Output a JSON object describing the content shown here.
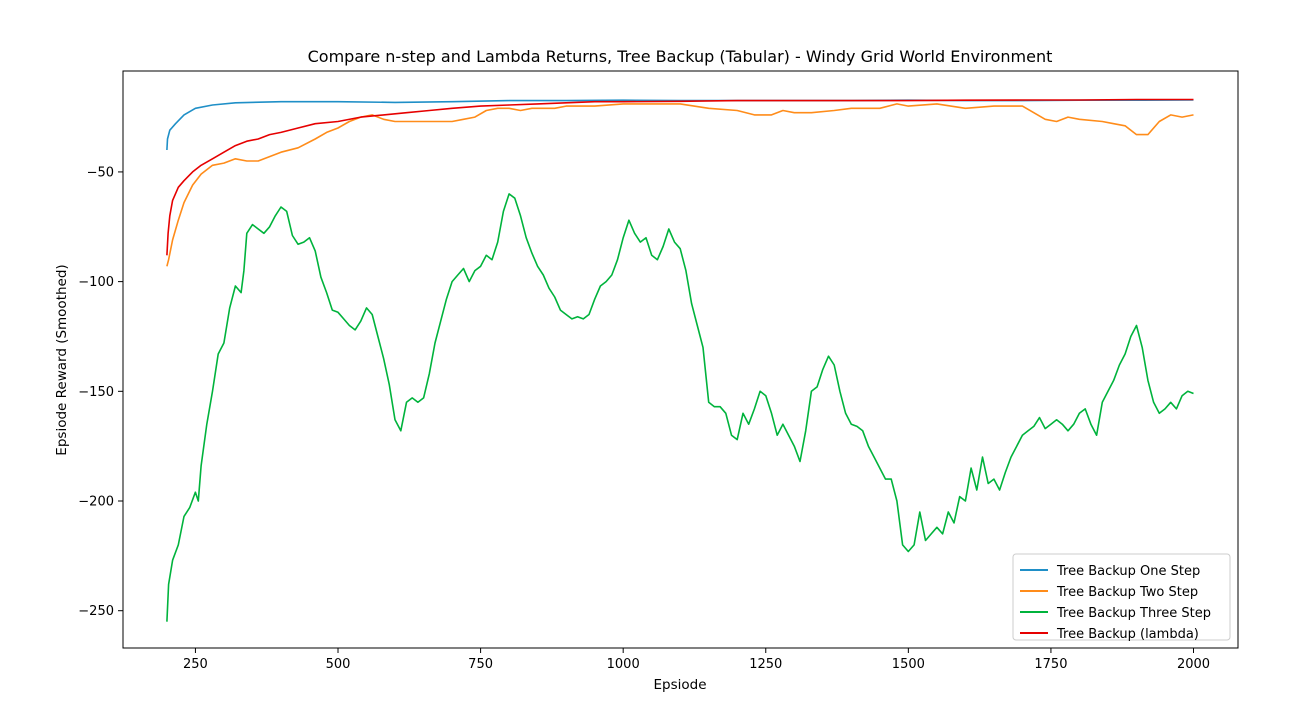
{
  "chart_data": {
    "type": "line",
    "title": "Compare n-step and Lambda Returns, Tree Backup (Tabular) - Windy Grid World Environment",
    "xlabel": "Epsiode",
    "ylabel": "Epsiode Reward (Smoothed)",
    "xlim": [
      123,
      2078
    ],
    "ylim": [
      -267,
      -4
    ],
    "xticks": [
      250,
      500,
      750,
      1000,
      1250,
      1500,
      1750,
      2000
    ],
    "yticks": [
      -250,
      -200,
      -150,
      -100,
      -50
    ],
    "grid": false,
    "legend_position": "lower right",
    "series": [
      {
        "name": "Tree Backup One Step",
        "color": "#1f8fc7",
        "points": [
          [
            200,
            -40
          ],
          [
            201,
            -35
          ],
          [
            205,
            -31
          ],
          [
            215,
            -28
          ],
          [
            230,
            -24
          ],
          [
            250,
            -21
          ],
          [
            280,
            -19.5
          ],
          [
            320,
            -18.5
          ],
          [
            400,
            -18
          ],
          [
            500,
            -18
          ],
          [
            600,
            -18.3
          ],
          [
            700,
            -18
          ],
          [
            800,
            -17.5
          ],
          [
            900,
            -17.5
          ],
          [
            1000,
            -17.3
          ],
          [
            1100,
            -17.5
          ],
          [
            1200,
            -17.5
          ],
          [
            1300,
            -17.5
          ],
          [
            1400,
            -17.5
          ],
          [
            1500,
            -17.3
          ],
          [
            1600,
            -17.5
          ],
          [
            1700,
            -17.5
          ],
          [
            1800,
            -17.3
          ],
          [
            1900,
            -17.3
          ],
          [
            2000,
            -17.2
          ]
        ]
      },
      {
        "name": "Tree Backup Two Step",
        "color": "#ff8c1a",
        "points": [
          [
            200,
            -93
          ],
          [
            203,
            -90
          ],
          [
            210,
            -81
          ],
          [
            220,
            -72
          ],
          [
            230,
            -64
          ],
          [
            245,
            -56
          ],
          [
            260,
            -51
          ],
          [
            280,
            -47
          ],
          [
            300,
            -46
          ],
          [
            320,
            -44
          ],
          [
            340,
            -45
          ],
          [
            360,
            -45
          ],
          [
            380,
            -43
          ],
          [
            400,
            -41
          ],
          [
            430,
            -39
          ],
          [
            460,
            -35
          ],
          [
            480,
            -32
          ],
          [
            500,
            -30
          ],
          [
            520,
            -27
          ],
          [
            540,
            -25
          ],
          [
            560,
            -24
          ],
          [
            580,
            -26
          ],
          [
            600,
            -27
          ],
          [
            650,
            -27
          ],
          [
            700,
            -27
          ],
          [
            720,
            -26
          ],
          [
            740,
            -25
          ],
          [
            760,
            -22
          ],
          [
            780,
            -21
          ],
          [
            800,
            -21
          ],
          [
            820,
            -22
          ],
          [
            840,
            -21
          ],
          [
            880,
            -21
          ],
          [
            900,
            -20
          ],
          [
            950,
            -20
          ],
          [
            1000,
            -19
          ],
          [
            1050,
            -19
          ],
          [
            1100,
            -19
          ],
          [
            1150,
            -21
          ],
          [
            1200,
            -22
          ],
          [
            1230,
            -24
          ],
          [
            1260,
            -24
          ],
          [
            1280,
            -22
          ],
          [
            1300,
            -23
          ],
          [
            1330,
            -23
          ],
          [
            1370,
            -22
          ],
          [
            1400,
            -21
          ],
          [
            1450,
            -21
          ],
          [
            1480,
            -19
          ],
          [
            1500,
            -20
          ],
          [
            1550,
            -19
          ],
          [
            1600,
            -21
          ],
          [
            1650,
            -20
          ],
          [
            1700,
            -20
          ],
          [
            1720,
            -23
          ],
          [
            1740,
            -26
          ],
          [
            1760,
            -27
          ],
          [
            1780,
            -25
          ],
          [
            1800,
            -26
          ],
          [
            1840,
            -27
          ],
          [
            1860,
            -28
          ],
          [
            1880,
            -29
          ],
          [
            1900,
            -33
          ],
          [
            1920,
            -33
          ],
          [
            1940,
            -27
          ],
          [
            1960,
            -24
          ],
          [
            1980,
            -25
          ],
          [
            2000,
            -24
          ]
        ]
      },
      {
        "name": "Tree Backup Three Step",
        "color": "#00b33c",
        "points": [
          [
            200,
            -255
          ],
          [
            203,
            -238
          ],
          [
            210,
            -227
          ],
          [
            220,
            -220
          ],
          [
            230,
            -207
          ],
          [
            240,
            -203
          ],
          [
            250,
            -196
          ],
          [
            255,
            -200
          ],
          [
            260,
            -184
          ],
          [
            270,
            -165
          ],
          [
            280,
            -150
          ],
          [
            290,
            -133
          ],
          [
            300,
            -128
          ],
          [
            310,
            -112
          ],
          [
            320,
            -102
          ],
          [
            330,
            -105
          ],
          [
            335,
            -95
          ],
          [
            340,
            -78
          ],
          [
            350,
            -74
          ],
          [
            360,
            -76
          ],
          [
            370,
            -78
          ],
          [
            380,
            -75
          ],
          [
            390,
            -70
          ],
          [
            400,
            -66
          ],
          [
            410,
            -68
          ],
          [
            420,
            -79
          ],
          [
            430,
            -83
          ],
          [
            440,
            -82
          ],
          [
            450,
            -80
          ],
          [
            460,
            -86
          ],
          [
            470,
            -98
          ],
          [
            480,
            -105
          ],
          [
            490,
            -113
          ],
          [
            500,
            -114
          ],
          [
            510,
            -117
          ],
          [
            520,
            -120
          ],
          [
            530,
            -122
          ],
          [
            540,
            -118
          ],
          [
            550,
            -112
          ],
          [
            560,
            -115
          ],
          [
            570,
            -125
          ],
          [
            580,
            -135
          ],
          [
            590,
            -147
          ],
          [
            600,
            -163
          ],
          [
            610,
            -168
          ],
          [
            620,
            -155
          ],
          [
            630,
            -153
          ],
          [
            640,
            -155
          ],
          [
            650,
            -153
          ],
          [
            660,
            -142
          ],
          [
            670,
            -128
          ],
          [
            680,
            -118
          ],
          [
            690,
            -108
          ],
          [
            700,
            -100
          ],
          [
            710,
            -97
          ],
          [
            720,
            -94
          ],
          [
            730,
            -100
          ],
          [
            740,
            -95
          ],
          [
            750,
            -93
          ],
          [
            760,
            -88
          ],
          [
            770,
            -90
          ],
          [
            780,
            -82
          ],
          [
            790,
            -68
          ],
          [
            800,
            -60
          ],
          [
            810,
            -62
          ],
          [
            820,
            -70
          ],
          [
            830,
            -80
          ],
          [
            840,
            -87
          ],
          [
            850,
            -93
          ],
          [
            860,
            -97
          ],
          [
            870,
            -103
          ],
          [
            880,
            -107
          ],
          [
            890,
            -113
          ],
          [
            900,
            -115
          ],
          [
            910,
            -117
          ],
          [
            920,
            -116
          ],
          [
            930,
            -117
          ],
          [
            940,
            -115
          ],
          [
            950,
            -108
          ],
          [
            960,
            -102
          ],
          [
            970,
            -100
          ],
          [
            980,
            -97
          ],
          [
            990,
            -90
          ],
          [
            1000,
            -80
          ],
          [
            1010,
            -72
          ],
          [
            1020,
            -78
          ],
          [
            1030,
            -82
          ],
          [
            1040,
            -80
          ],
          [
            1050,
            -88
          ],
          [
            1060,
            -90
          ],
          [
            1070,
            -84
          ],
          [
            1080,
            -76
          ],
          [
            1090,
            -82
          ],
          [
            1100,
            -85
          ],
          [
            1110,
            -95
          ],
          [
            1120,
            -110
          ],
          [
            1130,
            -120
          ],
          [
            1140,
            -130
          ],
          [
            1150,
            -155
          ],
          [
            1160,
            -157
          ],
          [
            1170,
            -157
          ],
          [
            1180,
            -160
          ],
          [
            1190,
            -170
          ],
          [
            1200,
            -172
          ],
          [
            1210,
            -160
          ],
          [
            1220,
            -165
          ],
          [
            1230,
            -158
          ],
          [
            1240,
            -150
          ],
          [
            1250,
            -152
          ],
          [
            1260,
            -160
          ],
          [
            1270,
            -170
          ],
          [
            1280,
            -165
          ],
          [
            1290,
            -170
          ],
          [
            1300,
            -175
          ],
          [
            1310,
            -182
          ],
          [
            1320,
            -168
          ],
          [
            1330,
            -150
          ],
          [
            1340,
            -148
          ],
          [
            1350,
            -140
          ],
          [
            1360,
            -134
          ],
          [
            1370,
            -138
          ],
          [
            1380,
            -150
          ],
          [
            1390,
            -160
          ],
          [
            1400,
            -165
          ],
          [
            1410,
            -166
          ],
          [
            1420,
            -168
          ],
          [
            1430,
            -175
          ],
          [
            1440,
            -180
          ],
          [
            1450,
            -185
          ],
          [
            1460,
            -190
          ],
          [
            1470,
            -190
          ],
          [
            1480,
            -200
          ],
          [
            1490,
            -220
          ],
          [
            1500,
            -223
          ],
          [
            1510,
            -220
          ],
          [
            1520,
            -205
          ],
          [
            1530,
            -218
          ],
          [
            1540,
            -215
          ],
          [
            1550,
            -212
          ],
          [
            1560,
            -215
          ],
          [
            1570,
            -205
          ],
          [
            1580,
            -210
          ],
          [
            1590,
            -198
          ],
          [
            1600,
            -200
          ],
          [
            1610,
            -185
          ],
          [
            1620,
            -195
          ],
          [
            1630,
            -180
          ],
          [
            1640,
            -192
          ],
          [
            1650,
            -190
          ],
          [
            1660,
            -195
          ],
          [
            1670,
            -187
          ],
          [
            1680,
            -180
          ],
          [
            1690,
            -175
          ],
          [
            1700,
            -170
          ],
          [
            1710,
            -168
          ],
          [
            1720,
            -166
          ],
          [
            1730,
            -162
          ],
          [
            1740,
            -167
          ],
          [
            1750,
            -165
          ],
          [
            1760,
            -163
          ],
          [
            1770,
            -165
          ],
          [
            1780,
            -168
          ],
          [
            1790,
            -165
          ],
          [
            1800,
            -160
          ],
          [
            1810,
            -158
          ],
          [
            1820,
            -165
          ],
          [
            1830,
            -170
          ],
          [
            1840,
            -155
          ],
          [
            1850,
            -150
          ],
          [
            1860,
            -145
          ],
          [
            1870,
            -138
          ],
          [
            1880,
            -133
          ],
          [
            1890,
            -125
          ],
          [
            1900,
            -120
          ],
          [
            1910,
            -130
          ],
          [
            1920,
            -145
          ],
          [
            1930,
            -155
          ],
          [
            1940,
            -160
          ],
          [
            1950,
            -158
          ],
          [
            1960,
            -155
          ],
          [
            1970,
            -158
          ],
          [
            1980,
            -152
          ],
          [
            1990,
            -150
          ],
          [
            2000,
            -151
          ]
        ]
      },
      {
        "name": "Tree Backup (lambda)",
        "color": "#e60000",
        "points": [
          [
            200,
            -88
          ],
          [
            202,
            -78
          ],
          [
            205,
            -70
          ],
          [
            210,
            -63
          ],
          [
            220,
            -57
          ],
          [
            230,
            -54
          ],
          [
            245,
            -50
          ],
          [
            260,
            -47
          ],
          [
            280,
            -44
          ],
          [
            300,
            -41
          ],
          [
            320,
            -38
          ],
          [
            340,
            -36
          ],
          [
            360,
            -35
          ],
          [
            380,
            -33
          ],
          [
            400,
            -32
          ],
          [
            430,
            -30
          ],
          [
            460,
            -28
          ],
          [
            500,
            -27
          ],
          [
            540,
            -25
          ],
          [
            580,
            -24
          ],
          [
            620,
            -23
          ],
          [
            660,
            -22
          ],
          [
            700,
            -21
          ],
          [
            750,
            -20
          ],
          [
            800,
            -19.5
          ],
          [
            850,
            -19
          ],
          [
            900,
            -18.5
          ],
          [
            950,
            -18
          ],
          [
            1000,
            -18
          ],
          [
            1100,
            -17.8
          ],
          [
            1200,
            -17.5
          ],
          [
            1300,
            -17.5
          ],
          [
            1400,
            -17.5
          ],
          [
            1500,
            -17.5
          ],
          [
            1600,
            -17.3
          ],
          [
            1700,
            -17.2
          ],
          [
            1800,
            -17.2
          ],
          [
            1900,
            -17
          ],
          [
            2000,
            -17
          ]
        ]
      }
    ]
  }
}
